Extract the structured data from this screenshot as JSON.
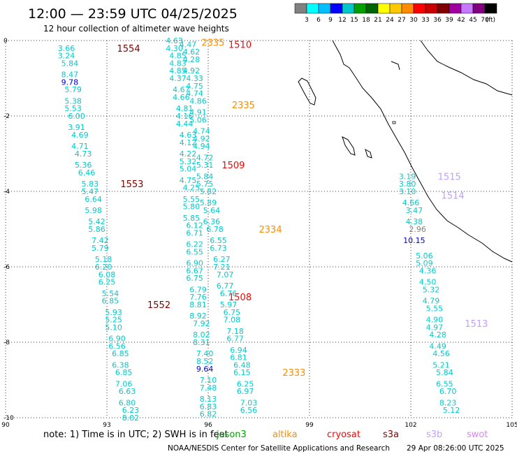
{
  "header": {
    "title": "12:00 — 23:59 UTC 04/25/2025",
    "subtitle": "12 hour collection of altimeter wave heights"
  },
  "colorbar": {
    "unit": "(ft)",
    "colors": [
      "#808080",
      "#00ffff",
      "#00bfff",
      "#0000ff",
      "#00c8c8",
      "#00a000",
      "#006400",
      "#ffff00",
      "#ffc800",
      "#ff8c00",
      "#ff0000",
      "#c80000",
      "#800000",
      "#a000a0",
      "#c878ff",
      "#800080",
      "#000000"
    ],
    "labels": [
      "3",
      "6",
      "9",
      "12",
      "15",
      "18",
      "21",
      "24",
      "27",
      "30",
      "33",
      "36",
      "39",
      "42",
      "45",
      "70"
    ]
  },
  "axes": {
    "lon": {
      "min": 90,
      "max": 105,
      "ticks": [
        "90",
        "93",
        "96",
        "99",
        "102",
        "105"
      ]
    },
    "lat": {
      "min": -10,
      "max": 0,
      "ticks": [
        "0",
        "-2",
        "-4",
        "-6",
        "-8",
        "-10"
      ]
    }
  },
  "legend": {
    "note": "note:  1) Time is in UTC;  2) SWH is in feet",
    "satellites": [
      {
        "name": "jason3",
        "color": "#00a000"
      },
      {
        "name": "altika",
        "color": "#ff8c00"
      },
      {
        "name": "cryosat",
        "color": "#ff0000"
      },
      {
        "name": "s3a",
        "color": "#800000"
      },
      {
        "name": "s3b",
        "color": "#c0a0ff"
      },
      {
        "name": "swot",
        "color": "#e080ff"
      }
    ]
  },
  "footer": {
    "credit": "NOAA/NESDIS Center for Satellite Applications and Research",
    "timestamp": "29 Apr 08:26:00 UTC 2025"
  },
  "chart_data": {
    "type": "map",
    "tracks": [
      {
        "satellite": "s3a",
        "time_labels": [
          {
            "t": "1554",
            "lon": 93.3,
            "lat": -0.2
          },
          {
            "t": "1553",
            "lon": 93.4,
            "lat": -3.8
          },
          {
            "t": "1552",
            "lon": 94.2,
            "lat": -7.0
          }
        ],
        "color": "#800000",
        "points": [
          {
            "lon": 91.8,
            "lat": -0.2,
            "v": "3.66"
          },
          {
            "lon": 91.8,
            "lat": -0.4,
            "v": "3.24"
          },
          {
            "lon": 91.9,
            "lat": -0.6,
            "v": "5.84"
          },
          {
            "lon": 91.9,
            "lat": -0.9,
            "v": "8.47"
          },
          {
            "lon": 91.9,
            "lat": -1.1,
            "v": "9.78"
          },
          {
            "lon": 92.0,
            "lat": -1.3,
            "v": "5.79"
          },
          {
            "lon": 92.0,
            "lat": -1.6,
            "v": "5.38"
          },
          {
            "lon": 92.0,
            "lat": -1.8,
            "v": "5.53"
          },
          {
            "lon": 92.1,
            "lat": -2.0,
            "v": "6.00"
          },
          {
            "lon": 92.1,
            "lat": -2.3,
            "v": "3.91"
          },
          {
            "lon": 92.2,
            "lat": -2.5,
            "v": "4.69"
          },
          {
            "lon": 92.2,
            "lat": -2.8,
            "v": "4.71"
          },
          {
            "lon": 92.3,
            "lat": -3.0,
            "v": "4.73"
          },
          {
            "lon": 92.3,
            "lat": -3.3,
            "v": "5.36"
          },
          {
            "lon": 92.4,
            "lat": -3.5,
            "v": "6.46"
          },
          {
            "lon": 92.5,
            "lat": -3.8,
            "v": "5.83"
          },
          {
            "lon": 92.5,
            "lat": -4.0,
            "v": "5.47"
          },
          {
            "lon": 92.6,
            "lat": -4.2,
            "v": "6.64"
          },
          {
            "lon": 92.6,
            "lat": -4.5,
            "v": "5.98"
          },
          {
            "lon": 92.7,
            "lat": -4.8,
            "v": "5.42"
          },
          {
            "lon": 92.7,
            "lat": -5.0,
            "v": "5.86"
          },
          {
            "lon": 92.8,
            "lat": -5.3,
            "v": "7.42"
          },
          {
            "lon": 92.8,
            "lat": -5.5,
            "v": "5.79"
          },
          {
            "lon": 92.9,
            "lat": -5.8,
            "v": "5.18"
          },
          {
            "lon": 92.9,
            "lat": -6.0,
            "v": "6.20"
          },
          {
            "lon": 93.0,
            "lat": -6.2,
            "v": "6.08"
          },
          {
            "lon": 93.0,
            "lat": -6.4,
            "v": "6.25"
          },
          {
            "lon": 93.1,
            "lat": -6.7,
            "v": "5.54"
          },
          {
            "lon": 93.1,
            "lat": -6.9,
            "v": "6.85"
          },
          {
            "lon": 93.2,
            "lat": -7.2,
            "v": "5.93"
          },
          {
            "lon": 93.2,
            "lat": -7.4,
            "v": "5.25"
          },
          {
            "lon": 93.2,
            "lat": -7.6,
            "v": "5.10"
          },
          {
            "lon": 93.3,
            "lat": -7.9,
            "v": "6.90"
          },
          {
            "lon": 93.3,
            "lat": -8.1,
            "v": "6.56"
          },
          {
            "lon": 93.4,
            "lat": -8.3,
            "v": "6.85"
          },
          {
            "lon": 93.4,
            "lat": -8.6,
            "v": "6.38"
          },
          {
            "lon": 93.5,
            "lat": -8.8,
            "v": "6.85"
          },
          {
            "lon": 93.5,
            "lat": -9.1,
            "v": "7.06"
          },
          {
            "lon": 93.6,
            "lat": -9.3,
            "v": "6.63"
          },
          {
            "lon": 93.6,
            "lat": -9.6,
            "v": "6.80"
          },
          {
            "lon": 93.7,
            "lat": -9.8,
            "v": "6.23"
          },
          {
            "lon": 93.7,
            "lat": -10.0,
            "v": "8.02"
          }
        ]
      },
      {
        "satellite": "cryosat",
        "time_labels": [
          {
            "t": "1510",
            "lon": 96.6,
            "lat": -0.1
          },
          {
            "t": "1509",
            "lon": 96.4,
            "lat": -3.3
          },
          {
            "t": "1508",
            "lon": 96.6,
            "lat": -6.8
          }
        ],
        "color": "#ff0000",
        "points": [
          {
            "lon": 95.0,
            "lat": 0.0,
            "v": "4.63"
          },
          {
            "lon": 95.0,
            "lat": -0.2,
            "v": "4.30"
          },
          {
            "lon": 95.1,
            "lat": -0.4,
            "v": "4.85"
          },
          {
            "lon": 95.1,
            "lat": -0.6,
            "v": "4.83"
          },
          {
            "lon": 95.1,
            "lat": -0.8,
            "v": "4.85"
          },
          {
            "lon": 95.1,
            "lat": -1.0,
            "v": "4.37"
          },
          {
            "lon": 95.2,
            "lat": -1.3,
            "v": "4.67"
          },
          {
            "lon": 95.2,
            "lat": -1.5,
            "v": "4.66"
          },
          {
            "lon": 95.3,
            "lat": -1.8,
            "v": "4.81"
          },
          {
            "lon": 95.3,
            "lat": -2.0,
            "v": "4.16"
          },
          {
            "lon": 95.3,
            "lat": -2.2,
            "v": "4.44"
          },
          {
            "lon": 95.4,
            "lat": -2.5,
            "v": "4.63"
          },
          {
            "lon": 95.4,
            "lat": -2.7,
            "v": "4.12"
          },
          {
            "lon": 95.4,
            "lat": -3.0,
            "v": "4.22"
          },
          {
            "lon": 95.4,
            "lat": -3.2,
            "v": "5.32"
          },
          {
            "lon": 95.4,
            "lat": -3.4,
            "v": "5.04"
          },
          {
            "lon": 95.4,
            "lat": -3.7,
            "v": "4.75"
          },
          {
            "lon": 95.5,
            "lat": -3.9,
            "v": "4.25"
          },
          {
            "lon": 95.5,
            "lat": -4.2,
            "v": "5.55"
          },
          {
            "lon": 95.5,
            "lat": -4.4,
            "v": "5.80"
          },
          {
            "lon": 95.5,
            "lat": -4.7,
            "v": "5.85"
          },
          {
            "lon": 95.6,
            "lat": -4.9,
            "v": "6.12"
          },
          {
            "lon": 95.6,
            "lat": -5.1,
            "v": "6.71"
          },
          {
            "lon": 95.6,
            "lat": -5.4,
            "v": "6.22"
          },
          {
            "lon": 95.6,
            "lat": -5.6,
            "v": "6.55"
          },
          {
            "lon": 95.6,
            "lat": -5.9,
            "v": "6.90"
          },
          {
            "lon": 95.6,
            "lat": -6.1,
            "v": "6.67"
          },
          {
            "lon": 95.6,
            "lat": -6.3,
            "v": "6.75"
          },
          {
            "lon": 95.7,
            "lat": -6.6,
            "v": "6.79"
          },
          {
            "lon": 95.7,
            "lat": -6.8,
            "v": "7.76"
          },
          {
            "lon": 95.7,
            "lat": -7.0,
            "v": "8.81"
          },
          {
            "lon": 95.7,
            "lat": -7.3,
            "v": "8.92"
          },
          {
            "lon": 95.8,
            "lat": -7.5,
            "v": "7.92"
          },
          {
            "lon": 95.8,
            "lat": -7.8,
            "v": "8.02"
          },
          {
            "lon": 95.8,
            "lat": -8.0,
            "v": "8.31"
          },
          {
            "lon": 95.9,
            "lat": -8.3,
            "v": "7.40"
          },
          {
            "lon": 95.9,
            "lat": -8.5,
            "v": "8.52"
          },
          {
            "lon": 95.9,
            "lat": -8.7,
            "v": "9.64"
          },
          {
            "lon": 96.0,
            "lat": -9.0,
            "v": "7.10"
          },
          {
            "lon": 96.0,
            "lat": -9.2,
            "v": "7.48"
          },
          {
            "lon": 96.0,
            "lat": -9.5,
            "v": "8.13"
          },
          {
            "lon": 96.0,
            "lat": -9.7,
            "v": "6.83"
          },
          {
            "lon": 96.0,
            "lat": -9.9,
            "v": "6.82"
          }
        ]
      },
      {
        "satellite": "altika",
        "time_labels": [
          {
            "t": "2335",
            "lon": 95.8,
            "lat": -0.05
          },
          {
            "t": "2335",
            "lon": 96.7,
            "lat": -1.7
          },
          {
            "t": "2334",
            "lon": 97.5,
            "lat": -5.0
          },
          {
            "t": "2333",
            "lon": 98.2,
            "lat": -8.8
          }
        ],
        "color": "#ff8c00",
        "points": [
          {
            "lon": 95.4,
            "lat": -0.1,
            "v": "4.47"
          },
          {
            "lon": 95.5,
            "lat": -0.3,
            "v": "4.62"
          },
          {
            "lon": 95.5,
            "lat": -0.5,
            "v": "4.28"
          },
          {
            "lon": 95.5,
            "lat": -0.8,
            "v": "4.92"
          },
          {
            "lon": 95.6,
            "lat": -1.0,
            "v": "4.33"
          },
          {
            "lon": 95.6,
            "lat": -1.2,
            "v": "4.75"
          },
          {
            "lon": 95.6,
            "lat": -1.4,
            "v": "4.74"
          },
          {
            "lon": 95.7,
            "lat": -1.6,
            "v": "4.86"
          },
          {
            "lon": 95.7,
            "lat": -1.9,
            "v": "4.91"
          },
          {
            "lon": 95.7,
            "lat": -2.1,
            "v": "5.06"
          },
          {
            "lon": 95.8,
            "lat": -2.4,
            "v": "4.74"
          },
          {
            "lon": 95.8,
            "lat": -2.6,
            "v": "4.92"
          },
          {
            "lon": 95.8,
            "lat": -2.8,
            "v": "4.94"
          },
          {
            "lon": 95.9,
            "lat": -3.1,
            "v": "4.72"
          },
          {
            "lon": 95.9,
            "lat": -3.3,
            "v": "5.31"
          },
          {
            "lon": 95.9,
            "lat": -3.6,
            "v": "5.84"
          },
          {
            "lon": 95.9,
            "lat": -3.8,
            "v": "5.75"
          },
          {
            "lon": 96.0,
            "lat": -4.0,
            "v": "5.82"
          },
          {
            "lon": 96.0,
            "lat": -4.3,
            "v": "5.89"
          },
          {
            "lon": 96.1,
            "lat": -4.5,
            "v": "5.64"
          },
          {
            "lon": 96.1,
            "lat": -4.8,
            "v": "6.36"
          },
          {
            "lon": 96.2,
            "lat": -5.0,
            "v": "6.78"
          },
          {
            "lon": 96.3,
            "lat": -5.3,
            "v": "6.55"
          },
          {
            "lon": 96.3,
            "lat": -5.5,
            "v": "6.73"
          },
          {
            "lon": 96.4,
            "lat": -5.8,
            "v": "6.27"
          },
          {
            "lon": 96.4,
            "lat": -6.0,
            "v": "7.21"
          },
          {
            "lon": 96.5,
            "lat": -6.2,
            "v": "7.07"
          },
          {
            "lon": 96.5,
            "lat": -6.5,
            "v": "6.77"
          },
          {
            "lon": 96.6,
            "lat": -6.7,
            "v": "6.76"
          },
          {
            "lon": 96.6,
            "lat": -7.0,
            "v": "5.97"
          },
          {
            "lon": 96.7,
            "lat": -7.2,
            "v": "6.75"
          },
          {
            "lon": 96.7,
            "lat": -7.4,
            "v": "7.08"
          },
          {
            "lon": 96.8,
            "lat": -7.7,
            "v": "7.18"
          },
          {
            "lon": 96.8,
            "lat": -7.9,
            "v": "6.77"
          },
          {
            "lon": 96.9,
            "lat": -8.2,
            "v": "6.94"
          },
          {
            "lon": 96.9,
            "lat": -8.4,
            "v": "6.81"
          },
          {
            "lon": 97.0,
            "lat": -8.6,
            "v": "6.48"
          },
          {
            "lon": 97.0,
            "lat": -8.8,
            "v": "6.15"
          },
          {
            "lon": 97.1,
            "lat": -9.1,
            "v": "6.25"
          },
          {
            "lon": 97.1,
            "lat": -9.3,
            "v": "6.97"
          },
          {
            "lon": 97.2,
            "lat": -9.6,
            "v": "7.03"
          },
          {
            "lon": 97.2,
            "lat": -9.8,
            "v": "6.56"
          }
        ]
      },
      {
        "satellite": "s3b",
        "time_labels": [
          {
            "t": "1515",
            "lon": 102.8,
            "lat": -3.6
          },
          {
            "t": "1514",
            "lon": 102.9,
            "lat": -4.1
          },
          {
            "t": "1513",
            "lon": 103.6,
            "lat": -7.5
          }
        ],
        "color": "#c0a0ff",
        "points": [
          {
            "lon": 101.9,
            "lat": -3.6,
            "v": "3.19"
          },
          {
            "lon": 101.9,
            "lat": -3.8,
            "v": "3.80"
          },
          {
            "lon": 101.9,
            "lat": -4.0,
            "v": "3.10"
          },
          {
            "lon": 102.0,
            "lat": -4.3,
            "v": "4.66"
          },
          {
            "lon": 102.1,
            "lat": -4.5,
            "v": "3.47"
          },
          {
            "lon": 102.1,
            "lat": -4.8,
            "v": "4.38"
          },
          {
            "lon": 102.2,
            "lat": -5.0,
            "v": "2.96"
          },
          {
            "lon": 102.1,
            "lat": -5.3,
            "v": "10.15"
          },
          {
            "lon": 102.4,
            "lat": -5.7,
            "v": "5.06"
          },
          {
            "lon": 102.4,
            "lat": -5.9,
            "v": "5.09"
          },
          {
            "lon": 102.5,
            "lat": -6.1,
            "v": "4.36"
          },
          {
            "lon": 102.5,
            "lat": -6.4,
            "v": "4.50"
          },
          {
            "lon": 102.6,
            "lat": -6.6,
            "v": "5.32"
          },
          {
            "lon": 102.6,
            "lat": -6.9,
            "v": "4.79"
          },
          {
            "lon": 102.7,
            "lat": -7.1,
            "v": "5.55"
          },
          {
            "lon": 102.7,
            "lat": -7.4,
            "v": "4.90"
          },
          {
            "lon": 102.7,
            "lat": -7.6,
            "v": "4.97"
          },
          {
            "lon": 102.8,
            "lat": -7.8,
            "v": "4.28"
          },
          {
            "lon": 102.8,
            "lat": -8.1,
            "v": "4.49"
          },
          {
            "lon": 102.9,
            "lat": -8.3,
            "v": "4.56"
          },
          {
            "lon": 102.9,
            "lat": -8.6,
            "v": "5.21"
          },
          {
            "lon": 103.0,
            "lat": -8.8,
            "v": "5.84"
          },
          {
            "lon": 103.0,
            "lat": -9.1,
            "v": "6.55"
          },
          {
            "lon": 103.1,
            "lat": -9.3,
            "v": "6.70"
          },
          {
            "lon": 103.1,
            "lat": -9.6,
            "v": "8.23"
          },
          {
            "lon": 103.2,
            "lat": -9.8,
            "v": "5.12"
          }
        ]
      }
    ]
  }
}
